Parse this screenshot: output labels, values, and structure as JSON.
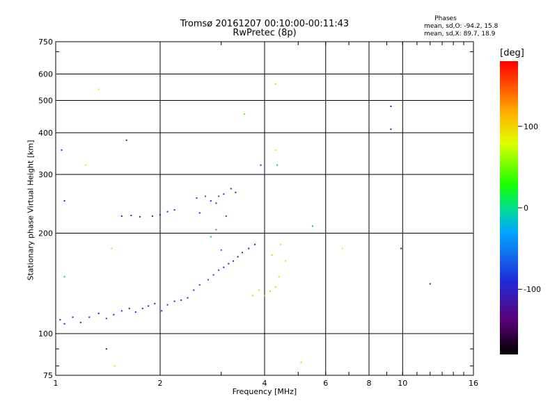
{
  "title_line1": "Tromsø 20161207 00:10:00-00:11:43",
  "title_line2": "RwPretec (8p)",
  "stats": {
    "heading": "Phases",
    "line_o": "mean, sd,O: -94.2, 15.8",
    "line_x": "mean, sd,X:  89.7, 18.9"
  },
  "colorbar": {
    "unit": "[deg]",
    "ticks": [
      "100",
      "0",
      "-100"
    ],
    "range": [
      -180,
      180
    ],
    "scale": "rainbow"
  },
  "chart_data": {
    "type": "scatter",
    "xlabel": "Frequency [MHz]",
    "ylabel": "Stationary phase Virtual Height [km]",
    "x_scale": "log",
    "y_scale": "log",
    "xlim": [
      1,
      16
    ],
    "ylim": [
      75,
      750
    ],
    "x_ticks": [
      "1",
      "2",
      "4",
      "6",
      "8",
      "10",
      "16"
    ],
    "y_ticks": [
      "75",
      "100",
      "200",
      "300",
      "400",
      "500",
      "600",
      "750"
    ],
    "grid": true,
    "series": [
      {
        "points": [
          [
            1.03,
            110,
            -95
          ],
          [
            1.06,
            107,
            -100
          ],
          [
            1.12,
            112,
            -97
          ],
          [
            1.18,
            108,
            -100
          ],
          [
            1.25,
            112,
            -95
          ],
          [
            1.33,
            115,
            -98
          ],
          [
            1.4,
            111,
            -92
          ],
          [
            1.47,
            114,
            -96
          ],
          [
            1.55,
            117,
            -100
          ],
          [
            1.63,
            119,
            -95
          ],
          [
            1.7,
            116,
            -90
          ],
          [
            1.78,
            119,
            -98
          ],
          [
            1.85,
            121,
            -100
          ],
          [
            1.93,
            123,
            -96
          ],
          [
            2.02,
            117,
            -95
          ],
          [
            2.1,
            122,
            -90
          ],
          [
            2.2,
            125,
            -100
          ],
          [
            2.3,
            126,
            -92
          ],
          [
            2.4,
            128,
            -95
          ],
          [
            2.5,
            135,
            -93
          ],
          [
            2.6,
            140,
            -80
          ],
          [
            2.75,
            145,
            -70
          ],
          [
            2.85,
            150,
            -80
          ],
          [
            2.95,
            155,
            -78
          ],
          [
            3.05,
            158,
            -100
          ],
          [
            3.15,
            162,
            -110
          ],
          [
            3.25,
            165,
            -115
          ],
          [
            3.35,
            170,
            -115
          ],
          [
            3.45,
            175,
            -110
          ],
          [
            3.6,
            180,
            -105
          ],
          [
            3.75,
            185,
            -100
          ],
          [
            1.55,
            225,
            -95
          ],
          [
            1.65,
            226,
            -98
          ],
          [
            1.75,
            224,
            -92
          ],
          [
            1.9,
            225,
            -96
          ],
          [
            2.0,
            227,
            -95
          ],
          [
            2.1,
            232,
            -90
          ],
          [
            2.2,
            235,
            -93
          ],
          [
            2.55,
            255,
            -78
          ],
          [
            2.7,
            258,
            -70
          ],
          [
            2.8,
            250,
            -85
          ],
          [
            2.95,
            258,
            -80
          ],
          [
            3.05,
            262,
            -88
          ],
          [
            3.2,
            272,
            -105
          ],
          [
            2.6,
            230,
            -88
          ],
          [
            2.9,
            246,
            -95
          ],
          [
            3.3,
            265,
            -110
          ],
          [
            4.0,
            130,
            97
          ],
          [
            4.15,
            134,
            100
          ],
          [
            4.3,
            138,
            103
          ],
          [
            4.4,
            148,
            100
          ],
          [
            4.2,
            172,
            102
          ],
          [
            4.45,
            185,
            98
          ],
          [
            4.6,
            165,
            100
          ],
          [
            3.7,
            130,
            102
          ],
          [
            3.85,
            135,
            100
          ],
          [
            1.04,
            355,
            -90
          ],
          [
            1.06,
            250,
            -98
          ],
          [
            1.33,
            540,
            88
          ],
          [
            1.6,
            380,
            -110
          ],
          [
            1.22,
            320,
            92
          ],
          [
            1.45,
            180,
            100
          ],
          [
            3.5,
            455,
            40
          ],
          [
            4.3,
            560,
            98
          ],
          [
            4.3,
            355,
            88
          ],
          [
            4.35,
            320,
            -20
          ],
          [
            9.25,
            480,
            -110
          ],
          [
            9.25,
            410,
            -110
          ],
          [
            9.9,
            600,
            -100
          ],
          [
            9.9,
            180,
            -110
          ],
          [
            12.0,
            141,
            -115
          ],
          [
            6.7,
            180,
            90
          ],
          [
            5.5,
            210,
            -25
          ],
          [
            1.06,
            148,
            -20
          ],
          [
            1.4,
            90,
            -110
          ],
          [
            1.48,
            80,
            95
          ],
          [
            5.1,
            82,
            100
          ],
          [
            4.0,
            300,
            -80
          ],
          [
            3.9,
            320,
            -100
          ],
          [
            2.8,
            195,
            -25
          ],
          [
            2.9,
            205,
            -40
          ],
          [
            3.0,
            178,
            -60
          ],
          [
            3.1,
            225,
            -75
          ]
        ]
      }
    ]
  }
}
